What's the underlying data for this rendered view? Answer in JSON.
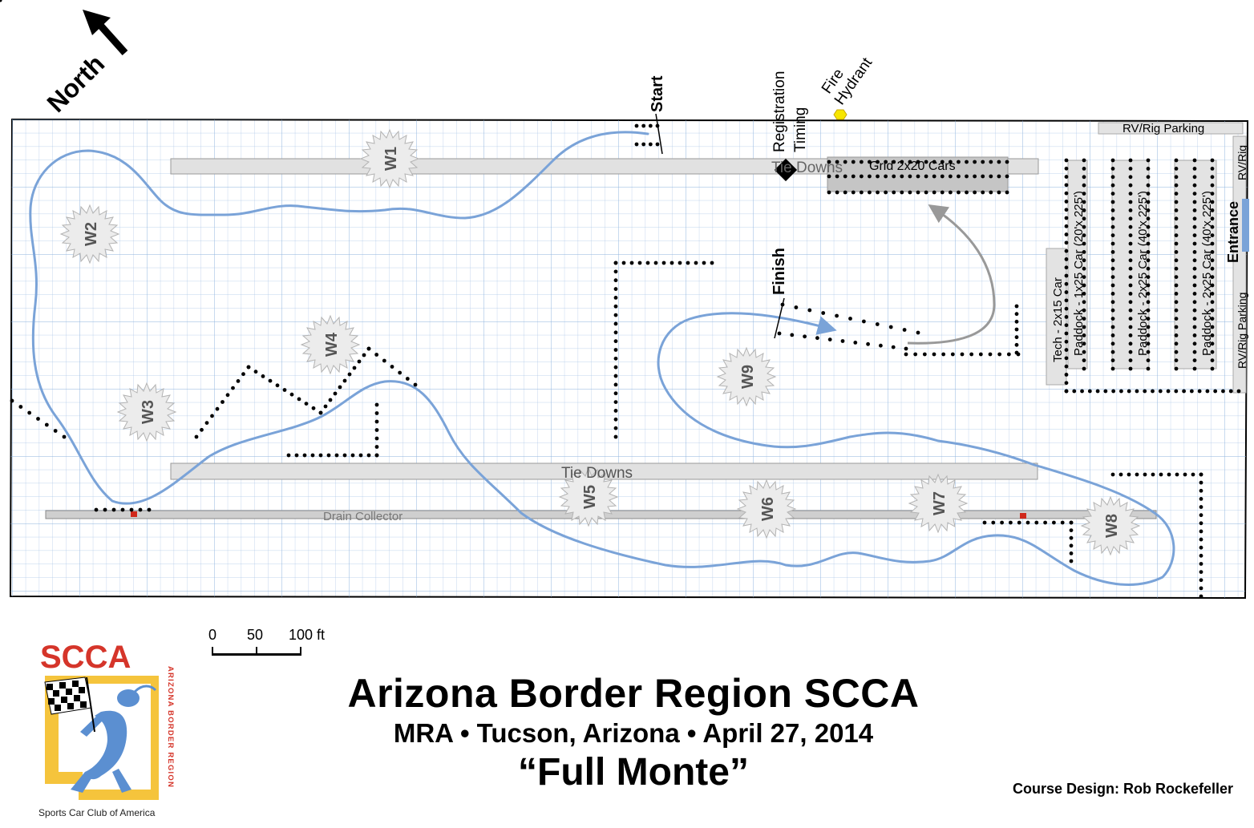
{
  "north": {
    "label": "North"
  },
  "labels": {
    "start": "Start",
    "registration": "Registration",
    "timing": "Timing",
    "fire": "Fire",
    "hydrant": "Hydrant",
    "finish": "Finish",
    "tie_downs_top": "Tie Downs",
    "tie_downs_bottom": "Tie Downs",
    "grid": "Grid 2x20 Cars",
    "rv_rig_parking_top": "RV/Rig Parking",
    "rv_rig_right_top": "RV/Rig",
    "rv_rig_parking_right": "RV/Rig Parking",
    "entrance": "Entrance",
    "tech": "Tech - 2x15 Car",
    "paddock1": "Paddock - 1x25 Car (20'x 225')",
    "paddock2": "Paddock - 2x25 Car (40'x 225')",
    "paddock3": "Paddock - 2x25 Car (40'x 225')",
    "drain": "Drain Collector"
  },
  "workers": [
    "W1",
    "W2",
    "W3",
    "W4",
    "W5",
    "W6",
    "W7",
    "W8",
    "W9"
  ],
  "scale": {
    "zero": "0",
    "fifty": "50",
    "hundred": "100 ft"
  },
  "title": {
    "line1": "Arizona Border Region SCCA",
    "line2": "MRA • Tucson, Arizona • April 27, 2014",
    "line3": "“Full Monte”"
  },
  "designer": "Course Design:  Rob Rockefeller",
  "logo": {
    "text": "SCCA",
    "caption": "Sports Car Club of America",
    "side": "ARIZONA BORDER REGION"
  },
  "colors": {
    "course": "#7aa3d8",
    "grid": "#aac6e6",
    "strip": "#dedede",
    "hydrant": "#f7e600",
    "marker": "#d0281b"
  }
}
